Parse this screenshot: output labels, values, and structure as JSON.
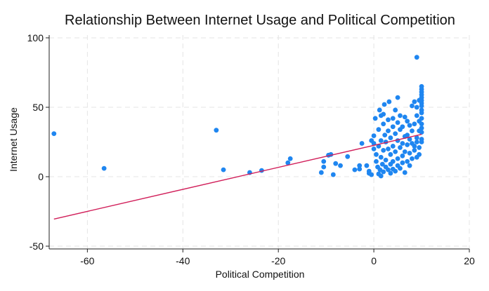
{
  "chart_data": {
    "type": "scatter",
    "title": "Relationship Between Internet Usage and Political Competition",
    "xlabel": "Political Competition",
    "ylabel": "Internet Usage",
    "xlim": [
      -68,
      20
    ],
    "ylim": [
      -52,
      102
    ],
    "xticks": [
      -60,
      -40,
      -20,
      0,
      20
    ],
    "yticks": [
      -50,
      0,
      50,
      100
    ],
    "grid": true,
    "legend": "none",
    "colors": {
      "points": "#1f86f0",
      "fit": "#d11f5a",
      "grid": "#e4e4e4"
    },
    "fit_line": {
      "x": [
        -67,
        10
      ],
      "y": [
        -30.5,
        30.5
      ]
    },
    "points": [
      {
        "x": -67,
        "y": 31
      },
      {
        "x": -56.5,
        "y": 6
      },
      {
        "x": -33,
        "y": 33.5
      },
      {
        "x": -31.5,
        "y": 5
      },
      {
        "x": -26,
        "y": 3
      },
      {
        "x": -23.5,
        "y": 4.5
      },
      {
        "x": -18,
        "y": 10
      },
      {
        "x": -17.5,
        "y": 13
      },
      {
        "x": -11,
        "y": 3
      },
      {
        "x": -10.5,
        "y": 7
      },
      {
        "x": -10.5,
        "y": 11
      },
      {
        "x": -9.5,
        "y": 15.5
      },
      {
        "x": -9,
        "y": 16
      },
      {
        "x": -8.5,
        "y": 1.5
      },
      {
        "x": -8,
        "y": 9.5
      },
      {
        "x": -7,
        "y": 8
      },
      {
        "x": -5.5,
        "y": 14.5
      },
      {
        "x": -4,
        "y": 5
      },
      {
        "x": -3,
        "y": 8
      },
      {
        "x": -3,
        "y": 5.5
      },
      {
        "x": -2.5,
        "y": 24
      },
      {
        "x": -1.5,
        "y": 8
      },
      {
        "x": -1,
        "y": 4
      },
      {
        "x": -1,
        "y": 2.5
      },
      {
        "x": -0.5,
        "y": 1.5
      },
      {
        "x": -0.5,
        "y": 26
      },
      {
        "x": 0,
        "y": 29.5
      },
      {
        "x": 0,
        "y": 24
      },
      {
        "x": 0,
        "y": 20
      },
      {
        "x": 0.3,
        "y": 42
      },
      {
        "x": 0.5,
        "y": 16
      },
      {
        "x": 0.5,
        "y": 11
      },
      {
        "x": 0.8,
        "y": 7
      },
      {
        "x": 1,
        "y": 34
      },
      {
        "x": 1,
        "y": 22
      },
      {
        "x": 1,
        "y": 2
      },
      {
        "x": 1.2,
        "y": 48
      },
      {
        "x": 1.3,
        "y": 5
      },
      {
        "x": 1.5,
        "y": 44
      },
      {
        "x": 1.5,
        "y": 26
      },
      {
        "x": 1.5,
        "y": 14
      },
      {
        "x": 1.5,
        "y": 0.5
      },
      {
        "x": 1.8,
        "y": 9
      },
      {
        "x": 2,
        "y": 45
      },
      {
        "x": 2,
        "y": 38
      },
      {
        "x": 2,
        "y": 19
      },
      {
        "x": 2,
        "y": 3.5
      },
      {
        "x": 2.2,
        "y": 52
      },
      {
        "x": 2.3,
        "y": 30
      },
      {
        "x": 2.5,
        "y": 25
      },
      {
        "x": 2.5,
        "y": 12
      },
      {
        "x": 2.5,
        "y": 7
      },
      {
        "x": 3,
        "y": 41
      },
      {
        "x": 3,
        "y": 33
      },
      {
        "x": 3,
        "y": 20
      },
      {
        "x": 3,
        "y": 5
      },
      {
        "x": 3.2,
        "y": 54
      },
      {
        "x": 3.5,
        "y": 28
      },
      {
        "x": 3.5,
        "y": 16
      },
      {
        "x": 3.5,
        "y": 9
      },
      {
        "x": 3.5,
        "y": 2.5
      },
      {
        "x": 4,
        "y": 42
      },
      {
        "x": 4,
        "y": 36
      },
      {
        "x": 4,
        "y": 22
      },
      {
        "x": 4,
        "y": 11
      },
      {
        "x": 4,
        "y": 5.5
      },
      {
        "x": 4.5,
        "y": 48
      },
      {
        "x": 4.5,
        "y": 31
      },
      {
        "x": 4.5,
        "y": 18
      },
      {
        "x": 4.5,
        "y": 4
      },
      {
        "x": 5,
        "y": 57
      },
      {
        "x": 5,
        "y": 39
      },
      {
        "x": 5,
        "y": 26
      },
      {
        "x": 5,
        "y": 13
      },
      {
        "x": 5,
        "y": 8
      },
      {
        "x": 5.5,
        "y": 44
      },
      {
        "x": 5.5,
        "y": 34
      },
      {
        "x": 5.5,
        "y": 21
      },
      {
        "x": 5.5,
        "y": 6
      },
      {
        "x": 6,
        "y": 36
      },
      {
        "x": 6,
        "y": 24
      },
      {
        "x": 6,
        "y": 15
      },
      {
        "x": 6,
        "y": 10
      },
      {
        "x": 6.5,
        "y": 43
      },
      {
        "x": 6.5,
        "y": 29
      },
      {
        "x": 6.5,
        "y": 18
      },
      {
        "x": 6.5,
        "y": 3
      },
      {
        "x": 7,
        "y": 40
      },
      {
        "x": 7,
        "y": 30
      },
      {
        "x": 7,
        "y": 23
      },
      {
        "x": 7,
        "y": 11
      },
      {
        "x": 7.5,
        "y": 37
      },
      {
        "x": 7.5,
        "y": 27
      },
      {
        "x": 7.5,
        "y": 17
      },
      {
        "x": 7.5,
        "y": 8
      },
      {
        "x": 8,
        "y": 51
      },
      {
        "x": 8,
        "y": 33
      },
      {
        "x": 8,
        "y": 24
      },
      {
        "x": 8,
        "y": 13
      },
      {
        "x": 8.5,
        "y": 54
      },
      {
        "x": 8.5,
        "y": 38
      },
      {
        "x": 8.5,
        "y": 22
      },
      {
        "x": 8.5,
        "y": 19
      },
      {
        "x": 9,
        "y": 86
      },
      {
        "x": 9,
        "y": 50
      },
      {
        "x": 9,
        "y": 44
      },
      {
        "x": 9,
        "y": 28
      },
      {
        "x": 9,
        "y": 25
      },
      {
        "x": 9,
        "y": 14
      },
      {
        "x": 9.5,
        "y": 55
      },
      {
        "x": 9.5,
        "y": 40
      },
      {
        "x": 9.5,
        "y": 33
      },
      {
        "x": 9.5,
        "y": 21
      },
      {
        "x": 9.5,
        "y": 16
      },
      {
        "x": 10,
        "y": 65
      },
      {
        "x": 10,
        "y": 63
      },
      {
        "x": 10,
        "y": 61
      },
      {
        "x": 10,
        "y": 59
      },
      {
        "x": 10,
        "y": 57
      },
      {
        "x": 10,
        "y": 55
      },
      {
        "x": 10,
        "y": 53
      },
      {
        "x": 10,
        "y": 51
      },
      {
        "x": 10,
        "y": 48
      },
      {
        "x": 10,
        "y": 46
      },
      {
        "x": 10,
        "y": 42
      },
      {
        "x": 10,
        "y": 38
      },
      {
        "x": 10,
        "y": 35
      },
      {
        "x": 10,
        "y": 32
      },
      {
        "x": 10,
        "y": 27
      },
      {
        "x": 10,
        "y": 25
      }
    ]
  }
}
